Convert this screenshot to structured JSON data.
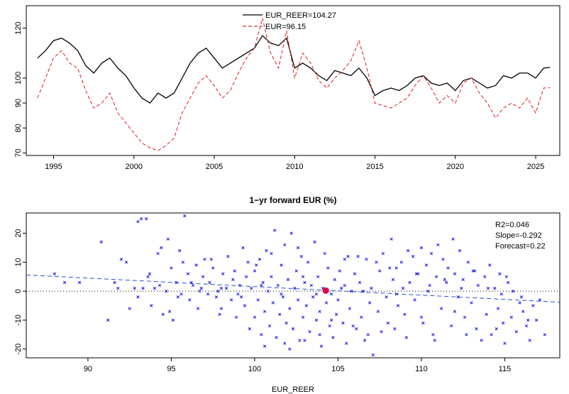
{
  "chart_data": [
    {
      "type": "line",
      "series": [
        {
          "name": "EUR_REER=104.27",
          "color": "#000000",
          "dash": "solid",
          "x": [
            1994.0,
            1994.5,
            1995.0,
            1995.5,
            1996.0,
            1996.5,
            1997.0,
            1997.5,
            1998.0,
            1998.5,
            1999.0,
            1999.5,
            2000.0,
            2000.5,
            2001.0,
            2001.5,
            2002.0,
            2002.5,
            2003.0,
            2003.5,
            2004.0,
            2004.5,
            2005.0,
            2005.5,
            2006.0,
            2006.5,
            2007.0,
            2007.5,
            2008.0,
            2008.5,
            2009.0,
            2009.5,
            2010.0,
            2010.5,
            2011.0,
            2011.5,
            2012.0,
            2012.5,
            2013.0,
            2013.5,
            2014.0,
            2014.5,
            2015.0,
            2015.5,
            2016.0,
            2016.5,
            2017.0,
            2017.5,
            2018.0,
            2018.5,
            2019.0,
            2019.5,
            2020.0,
            2020.5,
            2021.0,
            2021.5,
            2022.0,
            2022.5,
            2023.0,
            2023.5,
            2024.0,
            2024.5,
            2025.0,
            2025.5,
            2025.9
          ],
          "y": [
            108,
            111,
            115,
            116,
            114,
            111,
            105,
            102,
            106,
            108,
            104,
            101,
            96,
            92,
            90,
            94,
            92,
            94,
            100,
            106,
            110,
            112,
            108,
            104,
            106,
            108,
            110,
            112,
            117,
            114,
            113,
            116,
            104,
            106,
            104,
            101,
            99,
            103,
            102,
            101,
            104,
            100,
            93,
            95,
            96,
            95,
            97,
            100,
            101,
            98,
            97,
            98,
            95,
            99,
            100,
            98,
            96,
            97,
            101,
            100,
            102,
            102,
            100,
            104,
            104.27
          ]
        },
        {
          "name": "EUR=96.15",
          "color": "#e03030",
          "dash": "dashed",
          "x": [
            1994.0,
            1994.5,
            1995.0,
            1995.5,
            1996.0,
            1996.5,
            1997.0,
            1997.5,
            1998.0,
            1998.5,
            1999.0,
            1999.5,
            2000.0,
            2000.5,
            2001.0,
            2001.5,
            2002.0,
            2002.5,
            2003.0,
            2003.5,
            2004.0,
            2004.5,
            2005.0,
            2005.5,
            2006.0,
            2006.5,
            2007.0,
            2007.5,
            2008.0,
            2008.5,
            2009.0,
            2009.5,
            2010.0,
            2010.5,
            2011.0,
            2011.5,
            2012.0,
            2012.5,
            2013.0,
            2013.5,
            2014.0,
            2014.5,
            2015.0,
            2015.5,
            2016.0,
            2016.5,
            2017.0,
            2017.5,
            2018.0,
            2018.5,
            2019.0,
            2019.5,
            2020.0,
            2020.5,
            2021.0,
            2021.5,
            2022.0,
            2022.5,
            2023.0,
            2023.5,
            2024.0,
            2024.5,
            2025.0,
            2025.5,
            2025.9
          ],
          "y": [
            92,
            100,
            108,
            111,
            106,
            104,
            95,
            88,
            90,
            94,
            86,
            82,
            78,
            74,
            72,
            71,
            73,
            76,
            86,
            92,
            98,
            101,
            97,
            92,
            95,
            102,
            108,
            112,
            124,
            110,
            104,
            119,
            100,
            110,
            106,
            99,
            96,
            100,
            103,
            107,
            115,
            104,
            90,
            89,
            88,
            90,
            92,
            97,
            101,
            96,
            90,
            93,
            90,
            98,
            100,
            94,
            90,
            84,
            88,
            90,
            88,
            92,
            86,
            96,
            96.15
          ]
        }
      ],
      "xlim": [
        1993.3,
        2026.5
      ],
      "ylim": [
        69,
        129
      ],
      "yticks": [
        70,
        80,
        90,
        100,
        120
      ],
      "xticks": [
        1995,
        2000,
        2005,
        2010,
        2015,
        2020,
        2025
      ],
      "title": "",
      "xlabel": "",
      "ylabel": "",
      "legend": "top-center"
    },
    {
      "type": "scatter",
      "title": "1−yr forward EUR (%)",
      "xlabel": "EUR_REER",
      "ylabel": "",
      "xlim": [
        86.3,
        118.3
      ],
      "ylim": [
        -23,
        27
      ],
      "xticks": [
        90,
        95,
        100,
        105,
        110,
        115
      ],
      "yticks": [
        -20,
        -10,
        0,
        10,
        20
      ],
      "point_color": "#1a1ae6",
      "highlight": {
        "x": 104.27,
        "y": 0.2,
        "color": "#e0004a"
      },
      "zero_line": 0,
      "fit_line": {
        "from": [
          86.3,
          5.6
        ],
        "to": [
          118.3,
          -3.8
        ],
        "color": "#3050d0"
      },
      "annotations": [
        "R2=0.046",
        "Slope=-0.292",
        "Forecast=0.22"
      ],
      "annotation_placement": "top-right",
      "points": [
        [
          88.0,
          6
        ],
        [
          88.6,
          3
        ],
        [
          89.5,
          3
        ],
        [
          90.8,
          17
        ],
        [
          91.2,
          -10
        ],
        [
          91.6,
          3
        ],
        [
          91.8,
          1
        ],
        [
          92.0,
          11
        ],
        [
          92.3,
          10
        ],
        [
          92.5,
          -6
        ],
        [
          92.8,
          1
        ],
        [
          93.0,
          24
        ],
        [
          93.2,
          25
        ],
        [
          93.5,
          25
        ],
        [
          93.3,
          1
        ],
        [
          93.6,
          5
        ],
        [
          93.8,
          -5
        ],
        [
          94.0,
          1
        ],
        [
          94.2,
          13
        ],
        [
          94.4,
          15
        ],
        [
          94.5,
          -8
        ],
        [
          94.7,
          0
        ],
        [
          94.8,
          18
        ],
        [
          95.0,
          8
        ],
        [
          95.1,
          -10
        ],
        [
          95.3,
          3
        ],
        [
          95.4,
          -2
        ],
        [
          95.5,
          14
        ],
        [
          95.7,
          10
        ],
        [
          95.8,
          26
        ],
        [
          96.0,
          6
        ],
        [
          96.1,
          -3
        ],
        [
          96.3,
          2
        ],
        [
          96.5,
          9
        ],
        [
          96.6,
          -6
        ],
        [
          96.8,
          1
        ],
        [
          96.9,
          5
        ],
        [
          97.0,
          11
        ],
        [
          97.2,
          -1
        ],
        [
          97.3,
          3
        ],
        [
          97.5,
          8
        ],
        [
          97.7,
          -2
        ],
        [
          97.8,
          0
        ],
        [
          98.0,
          -6
        ],
        [
          98.1,
          6
        ],
        [
          98.3,
          1
        ],
        [
          98.4,
          12
        ],
        [
          98.6,
          -3
        ],
        [
          98.7,
          4
        ],
        [
          98.9,
          -9
        ],
        [
          99.0,
          -1
        ],
        [
          99.1,
          2
        ],
        [
          99.3,
          15
        ],
        [
          99.4,
          -5
        ],
        [
          99.5,
          5
        ],
        [
          99.7,
          -13
        ],
        [
          99.8,
          1
        ],
        [
          100.0,
          -9
        ],
        [
          100.0,
          7
        ],
        [
          100.2,
          -3
        ],
        [
          100.3,
          11
        ],
        [
          100.4,
          -15
        ],
        [
          100.5,
          3
        ],
        [
          100.6,
          -7
        ],
        [
          100.7,
          14
        ],
        [
          100.8,
          0
        ],
        [
          100.9,
          -12
        ],
        [
          101.0,
          5
        ],
        [
          101.1,
          -4
        ],
        [
          101.2,
          21
        ],
        [
          101.3,
          -16
        ],
        [
          101.4,
          2
        ],
        [
          101.5,
          -8
        ],
        [
          101.6,
          9
        ],
        [
          101.7,
          -2
        ],
        [
          101.8,
          16
        ],
        [
          101.9,
          -11
        ],
        [
          102.0,
          4
        ],
        [
          102.1,
          -6
        ],
        [
          102.2,
          20
        ],
        [
          102.3,
          -13
        ],
        [
          102.4,
          1
        ],
        [
          102.5,
          7
        ],
        [
          102.6,
          -3
        ],
        [
          102.7,
          -17
        ],
        [
          102.8,
          12
        ],
        [
          102.9,
          -9
        ],
        [
          103.0,
          3
        ],
        [
          103.1,
          -5
        ],
        [
          103.2,
          10
        ],
        [
          103.3,
          -14
        ],
        [
          103.4,
          2
        ],
        [
          103.5,
          -2
        ],
        [
          103.6,
          17
        ],
        [
          103.7,
          -10
        ],
        [
          103.8,
          5
        ],
        [
          103.9,
          -7
        ],
        [
          104.0,
          -19
        ],
        [
          104.1,
          1
        ],
        [
          104.3,
          -4
        ],
        [
          104.4,
          8
        ],
        [
          104.5,
          -12
        ],
        [
          104.6,
          -1
        ],
        [
          104.7,
          -16
        ],
        [
          104.8,
          4
        ],
        [
          104.9,
          -8
        ],
        [
          105.0,
          -3
        ],
        [
          105.1,
          7
        ],
        [
          105.3,
          -11
        ],
        [
          105.4,
          2
        ],
        [
          105.5,
          -18
        ],
        [
          105.6,
          12
        ],
        [
          105.7,
          -6
        ],
        [
          105.8,
          0
        ],
        [
          106.0,
          6
        ],
        [
          106.1,
          -13
        ],
        [
          106.3,
          3
        ],
        [
          106.4,
          -9
        ],
        [
          106.6,
          -17
        ],
        [
          106.7,
          11
        ],
        [
          106.9,
          -4
        ],
        [
          107.0,
          1
        ],
        [
          107.1,
          -22
        ],
        [
          107.3,
          10
        ],
        [
          107.4,
          -7
        ],
        [
          107.6,
          -14
        ],
        [
          107.7,
          13
        ],
        [
          107.9,
          -2
        ],
        [
          108.0,
          -11
        ],
        [
          108.2,
          18
        ],
        [
          108.3,
          4
        ],
        [
          108.5,
          8
        ],
        [
          108.6,
          -5
        ],
        [
          108.8,
          10
        ],
        [
          108.9,
          1
        ],
        [
          109.0,
          -8
        ],
        [
          109.2,
          14
        ],
        [
          109.3,
          3
        ],
        [
          109.5,
          12
        ],
        [
          109.6,
          -3
        ],
        [
          109.8,
          6
        ],
        [
          110.0,
          15
        ],
        [
          110.1,
          -11
        ],
        [
          110.3,
          9
        ],
        [
          110.4,
          0
        ],
        [
          110.6,
          13
        ],
        [
          110.7,
          -15
        ],
        [
          110.9,
          5
        ],
        [
          111.0,
          16
        ],
        [
          111.2,
          -6
        ],
        [
          111.3,
          11
        ],
        [
          111.5,
          3
        ],
        [
          111.6,
          8
        ],
        [
          111.8,
          -12
        ],
        [
          111.9,
          18
        ],
        [
          112.0,
          6
        ],
        [
          112.2,
          -2
        ],
        [
          112.3,
          14
        ],
        [
          112.5,
          4
        ],
        [
          112.6,
          -9
        ],
        [
          112.8,
          10
        ],
        [
          113.0,
          -4
        ],
        [
          113.1,
          7
        ],
        [
          113.3,
          -13
        ],
        [
          113.4,
          2
        ],
        [
          113.6,
          -17
        ],
        [
          113.8,
          5
        ],
        [
          113.9,
          -8
        ],
        [
          114.1,
          9
        ],
        [
          114.2,
          -15
        ],
        [
          114.4,
          1
        ],
        [
          114.6,
          -6
        ],
        [
          114.7,
          6
        ],
        [
          114.9,
          -11
        ],
        [
          115.0,
          -18
        ],
        [
          115.2,
          3
        ],
        [
          115.4,
          -9
        ],
        [
          115.5,
          0
        ],
        [
          115.7,
          -14
        ],
        [
          115.9,
          -4
        ],
        [
          116.1,
          -7
        ],
        [
          116.3,
          -12
        ],
        [
          116.5,
          -17
        ],
        [
          116.7,
          -5
        ],
        [
          116.9,
          -10
        ],
        [
          117.1,
          -3
        ],
        [
          117.4,
          -15
        ],
        [
          116.0,
          -2
        ],
        [
          114.0,
          1
        ],
        [
          112.0,
          -7
        ],
        [
          110.0,
          -9
        ],
        [
          108.5,
          -1
        ],
        [
          106.5,
          0
        ],
        [
          105.2,
          1
        ],
        [
          103.7,
          -1
        ],
        [
          102.9,
          5
        ],
        [
          101.6,
          -1
        ],
        [
          100.4,
          2
        ],
        [
          99.2,
          -2
        ],
        [
          98.0,
          1
        ],
        [
          96.7,
          0
        ],
        [
          95.6,
          -1
        ],
        [
          94.3,
          2
        ],
        [
          93.0,
          -2
        ],
        [
          97.4,
          11
        ],
        [
          98.8,
          7
        ],
        [
          100.1,
          9
        ],
        [
          101.0,
          13
        ],
        [
          102.1,
          -20
        ],
        [
          103.9,
          -15
        ],
        [
          105.9,
          -12
        ],
        [
          107.5,
          7
        ],
        [
          109.1,
          -16
        ],
        [
          110.8,
          -17
        ],
        [
          112.7,
          -15
        ],
        [
          114.5,
          -13
        ],
        [
          116.4,
          -10
        ],
        [
          100.6,
          -19
        ],
        [
          99.6,
          10
        ],
        [
          102.6,
          15
        ],
        [
          104.2,
          13
        ],
        [
          105.4,
          11
        ],
        [
          106.2,
          12
        ],
        [
          108.1,
          8
        ],
        [
          109.7,
          6
        ],
        [
          111.4,
          4
        ],
        [
          113.2,
          7
        ],
        [
          115.1,
          5
        ],
        [
          96.2,
          3
        ],
        [
          97.9,
          -8
        ],
        [
          94.9,
          -7
        ],
        [
          93.7,
          6
        ],
        [
          101.8,
          -18
        ],
        [
          103.0,
          -17
        ],
        [
          104.6,
          -10
        ],
        [
          106.8,
          -15
        ],
        [
          108.4,
          -13
        ],
        [
          110.5,
          2
        ],
        [
          112.4,
          1
        ],
        [
          114.8,
          -1
        ]
      ]
    }
  ]
}
